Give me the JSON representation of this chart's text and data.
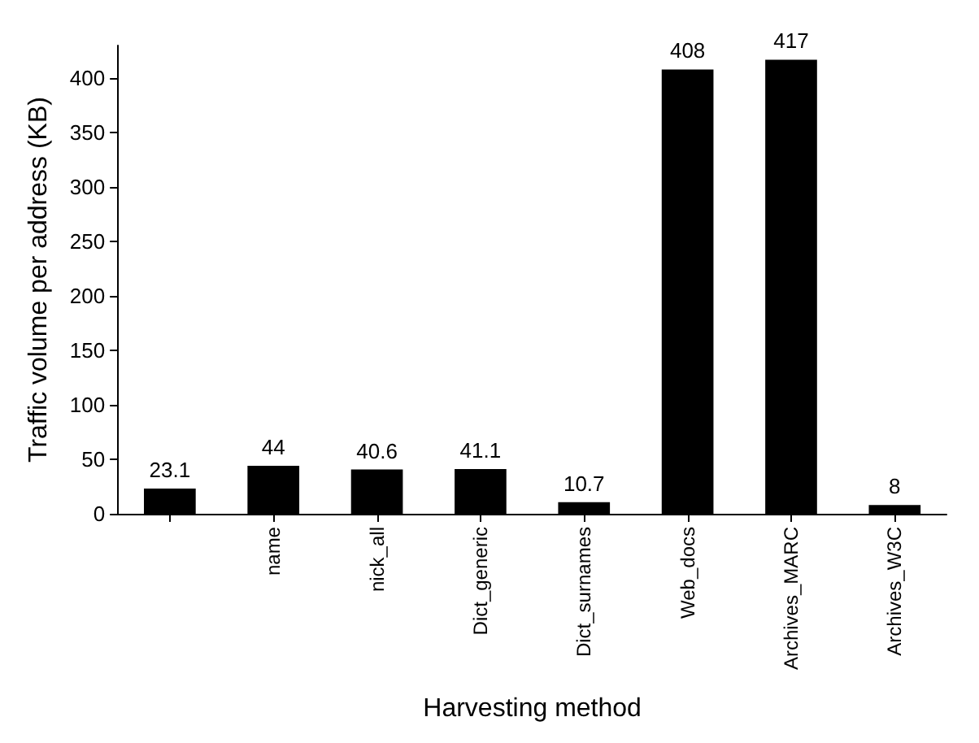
{
  "chart_data": {
    "type": "bar",
    "xlabel": "Harvesting method",
    "ylabel": "Traffic volume per address (KB)",
    "categories": [
      null,
      "name",
      "nick_all",
      "Dict_generic",
      "Dict_surnames",
      "Web_docs",
      "Archives_MARC",
      "Archives_W3C"
    ],
    "values": [
      23.1,
      44,
      40.6,
      41.1,
      10.7,
      408,
      417,
      8
    ],
    "color": "#000000",
    "ylim": [
      0,
      430
    ],
    "yticks": [
      0,
      50,
      100,
      150,
      200,
      250,
      300,
      350,
      400
    ],
    "grid": false,
    "data_labels": true
  }
}
